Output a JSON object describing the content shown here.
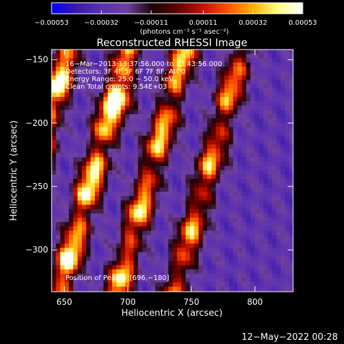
{
  "chart_data": {
    "type": "heatmap",
    "title": "Reconstructed RHESSI Image",
    "xlabel": "Heliocentric X (arcsec)",
    "ylabel": "Heliocentric Y (arcsec)",
    "xlim": [
      640,
      830
    ],
    "ylim": [
      -333,
      -142
    ],
    "xticks": [
      650,
      700,
      750,
      800
    ],
    "yticks": [
      -150,
      -200,
      -250,
      -300
    ],
    "ytick_labels": [
      "−150",
      "−200",
      "−250",
      "−300"
    ],
    "colorbar": {
      "tick_labels": [
        "−0.00053",
        "−0.00032",
        "−0.00011",
        "0.00011",
        "0.00032",
        "0.00053"
      ],
      "ticks": [
        -0.00053,
        -0.00032,
        -0.00011,
        0.00011,
        0.00032,
        0.00053
      ],
      "range": [
        -0.00053,
        0.00053
      ],
      "units_text": "(photons cm⁻² s⁻¹ asec⁻²)"
    },
    "annotations": [
      "16−Mar−2013 13:37:56.000 to 13:43:56.000",
      "Detectors: 3F 4F 5F 6F 7F 8F, Att 0",
      "Energy Range: 25.0 − 50.0 keV",
      "Clean     Total counts: 9.54E+03"
    ],
    "peak_text": "Position of Peak = [696,−180]",
    "peak": [
      696,
      -180
    ],
    "bands": [
      {
        "x0": 653,
        "y0": -142,
        "slope": 0.28,
        "amp": 1.0
      },
      {
        "x0": 700,
        "y0": -142,
        "slope": 0.28,
        "amp": 1.0
      },
      {
        "x0": 745,
        "y0": -142,
        "slope": 0.28,
        "amp": 0.85
      },
      {
        "x0": 790,
        "y0": -142,
        "slope": 0.28,
        "amp": 0.75
      }
    ],
    "colormap": [
      "#0000ff",
      "#3a1aa8",
      "#5a30b0",
      "#7040a0",
      "#1a0508",
      "#600000",
      "#c01000",
      "#ff5000",
      "#ffb000",
      "#ffff80",
      "#ffffff"
    ]
  },
  "footer": {
    "timestamp": "12−May−2022 00:28"
  }
}
